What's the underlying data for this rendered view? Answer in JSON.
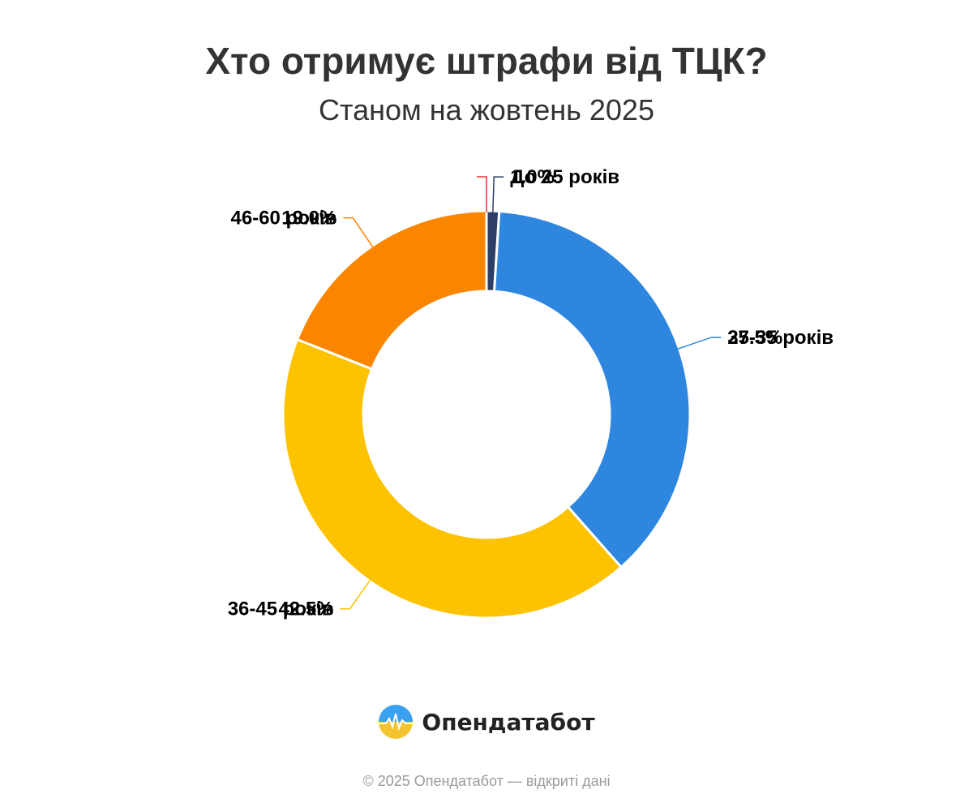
{
  "title": "Хто отримує штрафи від ТЦК?",
  "subtitle": "Станом на жовтень 2025",
  "brand": {
    "name": "Опендатабот"
  },
  "footer": "© 2025 Опендатабот — відкриті дані",
  "chart_data": {
    "type": "pie",
    "title": "Хто отримує штрафи від ТЦК?",
    "subtitle": "Станом на жовтень 2025",
    "donut": true,
    "slices": [
      {
        "label": "До 25 років",
        "value": 1.0,
        "display": "1.0%",
        "color": "#2c3e66"
      },
      {
        "label": "25-35 років",
        "value": 37.5,
        "display": "37.5%",
        "color": "#2e86de"
      },
      {
        "label": "36-45 років",
        "value": 42.5,
        "display": "42.5%",
        "color": "#fdc200"
      },
      {
        "label": "46-60 років",
        "value": 19.0,
        "display": "19.0%",
        "color": "#fa8600"
      },
      {
        "label": "",
        "value": 0.0,
        "display": "",
        "color": "#e53935"
      }
    ]
  }
}
